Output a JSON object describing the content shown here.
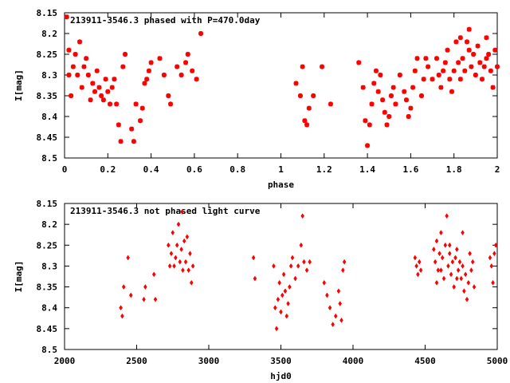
{
  "chart_data": [
    {
      "type": "scatter",
      "title": "213911-3546.3 phased with P=470.0day",
      "xlabel": "phase",
      "ylabel": "I[mag]",
      "xlim": [
        0,
        2
      ],
      "ylim": [
        8.15,
        8.5
      ],
      "y_inverted": true,
      "x_ticks": [
        "0",
        "0.2",
        "0.4",
        "0.6",
        "0.8",
        "1",
        "1.2",
        "1.4",
        "1.6",
        "1.8",
        "2"
      ],
      "y_ticks": [
        "8.15",
        "8.2",
        "8.25",
        "8.3",
        "8.35",
        "8.4",
        "8.45",
        "8.5"
      ],
      "grid": false,
      "marker_color": "#ff0000",
      "marker": "star",
      "series": [
        {
          "points": [
            [
              0.01,
              8.16
            ],
            [
              0.02,
              8.24
            ],
            [
              0.02,
              8.3
            ],
            [
              0.03,
              8.35
            ],
            [
              0.04,
              8.28
            ],
            [
              0.05,
              8.25
            ],
            [
              0.06,
              8.3
            ],
            [
              0.07,
              8.22
            ],
            [
              0.08,
              8.33
            ],
            [
              0.09,
              8.28
            ],
            [
              0.1,
              8.26
            ],
            [
              0.11,
              8.3
            ],
            [
              0.12,
              8.36
            ],
            [
              0.13,
              8.32
            ],
            [
              0.14,
              8.34
            ],
            [
              0.15,
              8.29
            ],
            [
              0.16,
              8.33
            ],
            [
              0.17,
              8.35
            ],
            [
              0.18,
              8.36
            ],
            [
              0.19,
              8.31
            ],
            [
              0.2,
              8.34
            ],
            [
              0.21,
              8.37
            ],
            [
              0.22,
              8.33
            ],
            [
              0.23,
              8.31
            ],
            [
              0.24,
              8.37
            ],
            [
              0.25,
              8.42
            ],
            [
              0.26,
              8.46
            ],
            [
              0.27,
              8.28
            ],
            [
              0.28,
              8.25
            ],
            [
              0.31,
              8.43
            ],
            [
              0.32,
              8.46
            ],
            [
              0.33,
              8.37
            ],
            [
              0.35,
              8.41
            ],
            [
              0.36,
              8.38
            ],
            [
              0.37,
              8.32
            ],
            [
              0.38,
              8.31
            ],
            [
              0.39,
              8.29
            ],
            [
              0.4,
              8.27
            ],
            [
              0.44,
              8.26
            ],
            [
              0.46,
              8.3
            ],
            [
              0.48,
              8.35
            ],
            [
              0.49,
              8.37
            ],
            [
              0.52,
              8.28
            ],
            [
              0.54,
              8.3
            ],
            [
              0.56,
              8.27
            ],
            [
              0.57,
              8.25
            ],
            [
              0.59,
              8.29
            ],
            [
              0.61,
              8.31
            ],
            [
              0.63,
              8.2
            ],
            [
              1.07,
              8.32
            ],
            [
              1.09,
              8.35
            ],
            [
              1.1,
              8.28
            ],
            [
              1.11,
              8.41
            ],
            [
              1.12,
              8.42
            ],
            [
              1.13,
              8.38
            ],
            [
              1.15,
              8.35
            ],
            [
              1.19,
              8.28
            ],
            [
              1.23,
              8.37
            ],
            [
              1.36,
              8.27
            ],
            [
              1.38,
              8.33
            ],
            [
              1.39,
              8.41
            ],
            [
              1.4,
              8.47
            ],
            [
              1.41,
              8.42
            ],
            [
              1.42,
              8.37
            ],
            [
              1.43,
              8.32
            ],
            [
              1.44,
              8.29
            ],
            [
              1.45,
              8.34
            ],
            [
              1.46,
              8.3
            ],
            [
              1.47,
              8.36
            ],
            [
              1.48,
              8.39
            ],
            [
              1.49,
              8.42
            ],
            [
              1.5,
              8.4
            ],
            [
              1.51,
              8.35
            ],
            [
              1.52,
              8.33
            ],
            [
              1.53,
              8.37
            ],
            [
              1.55,
              8.3
            ],
            [
              1.57,
              8.34
            ],
            [
              1.58,
              8.36
            ],
            [
              1.59,
              8.4
            ],
            [
              1.6,
              8.38
            ],
            [
              1.61,
              8.33
            ],
            [
              1.62,
              8.29
            ],
            [
              1.63,
              8.26
            ],
            [
              1.65,
              8.35
            ],
            [
              1.66,
              8.31
            ],
            [
              1.67,
              8.26
            ],
            [
              1.68,
              8.28
            ],
            [
              1.7,
              8.31
            ],
            [
              1.72,
              8.26
            ],
            [
              1.73,
              8.3
            ],
            [
              1.74,
              8.33
            ],
            [
              1.75,
              8.29
            ],
            [
              1.76,
              8.27
            ],
            [
              1.77,
              8.24
            ],
            [
              1.78,
              8.31
            ],
            [
              1.79,
              8.34
            ],
            [
              1.8,
              8.29
            ],
            [
              1.81,
              8.22
            ],
            [
              1.82,
              8.27
            ],
            [
              1.83,
              8.31
            ],
            [
              1.84,
              8.26
            ],
            [
              1.85,
              8.29
            ],
            [
              1.86,
              8.22
            ],
            [
              1.87,
              8.24
            ],
            [
              1.88,
              8.28
            ],
            [
              1.89,
              8.25
            ],
            [
              1.9,
              8.3
            ],
            [
              1.91,
              8.23
            ],
            [
              1.92,
              8.27
            ],
            [
              1.93,
              8.31
            ],
            [
              1.94,
              8.28
            ],
            [
              1.95,
              8.21
            ],
            [
              1.96,
              8.25
            ],
            [
              1.97,
              8.29
            ],
            [
              1.98,
              8.33
            ],
            [
              1.99,
              8.24
            ],
            [
              2.0,
              8.28
            ],
            [
              1.87,
              8.19
            ],
            [
              1.83,
              8.21
            ],
            [
              1.95,
              8.26
            ]
          ]
        }
      ]
    },
    {
      "type": "scatter",
      "title": "213911-3546.3 not phased light curve",
      "xlabel": "hjd0",
      "ylabel": "I[mag]",
      "xlim": [
        2000,
        5000
      ],
      "ylim": [
        8.15,
        8.5
      ],
      "y_inverted": true,
      "x_ticks": [
        "2000",
        "2500",
        "3000",
        "3500",
        "4000",
        "4500",
        "5000"
      ],
      "y_ticks": [
        "8.15",
        "8.2",
        "8.25",
        "8.3",
        "8.35",
        "8.4",
        "8.45",
        "8.5"
      ],
      "grid": false,
      "marker_color": "#ff0000",
      "marker": "diamond",
      "series": [
        {
          "points": [
            [
              2390,
              8.4
            ],
            [
              2400,
              8.42
            ],
            [
              2410,
              8.35
            ],
            [
              2440,
              8.28
            ],
            [
              2460,
              8.37
            ],
            [
              2550,
              8.38
            ],
            [
              2560,
              8.35
            ],
            [
              2620,
              8.32
            ],
            [
              2630,
              8.38
            ],
            [
              2720,
              8.25
            ],
            [
              2730,
              8.3
            ],
            [
              2740,
              8.27
            ],
            [
              2750,
              8.22
            ],
            [
              2760,
              8.3
            ],
            [
              2770,
              8.28
            ],
            [
              2780,
              8.25
            ],
            [
              2790,
              8.2
            ],
            [
              2800,
              8.29
            ],
            [
              2810,
              8.26
            ],
            [
              2815,
              8.17
            ],
            [
              2820,
              8.31
            ],
            [
              2830,
              8.24
            ],
            [
              2840,
              8.29
            ],
            [
              2850,
              8.23
            ],
            [
              2860,
              8.31
            ],
            [
              2870,
              8.27
            ],
            [
              2880,
              8.34
            ],
            [
              2890,
              8.3
            ],
            [
              3310,
              8.28
            ],
            [
              3320,
              8.33
            ],
            [
              3450,
              8.3
            ],
            [
              3460,
              8.4
            ],
            [
              3470,
              8.45
            ],
            [
              3480,
              8.38
            ],
            [
              3490,
              8.34
            ],
            [
              3500,
              8.41
            ],
            [
              3510,
              8.37
            ],
            [
              3520,
              8.32
            ],
            [
              3530,
              8.36
            ],
            [
              3540,
              8.42
            ],
            [
              3550,
              8.39
            ],
            [
              3560,
              8.35
            ],
            [
              3570,
              8.3
            ],
            [
              3580,
              8.28
            ],
            [
              3600,
              8.33
            ],
            [
              3620,
              8.3
            ],
            [
              3640,
              8.25
            ],
            [
              3650,
              8.18
            ],
            [
              3660,
              8.29
            ],
            [
              3680,
              8.31
            ],
            [
              3700,
              8.29
            ],
            [
              3800,
              8.34
            ],
            [
              3820,
              8.37
            ],
            [
              3840,
              8.4
            ],
            [
              3860,
              8.44
            ],
            [
              3880,
              8.42
            ],
            [
              3900,
              8.36
            ],
            [
              3910,
              8.39
            ],
            [
              3920,
              8.43
            ],
            [
              3930,
              8.31
            ],
            [
              3940,
              8.29
            ],
            [
              4430,
              8.28
            ],
            [
              4440,
              8.3
            ],
            [
              4450,
              8.32
            ],
            [
              4460,
              8.29
            ],
            [
              4470,
              8.31
            ],
            [
              4560,
              8.26
            ],
            [
              4570,
              8.29
            ],
            [
              4580,
              8.24
            ],
            [
              4590,
              8.31
            ],
            [
              4600,
              8.27
            ],
            [
              4610,
              8.22
            ],
            [
              4620,
              8.28
            ],
            [
              4630,
              8.33
            ],
            [
              4640,
              8.25
            ],
            [
              4650,
              8.18
            ],
            [
              4660,
              8.3
            ],
            [
              4670,
              8.27
            ],
            [
              4680,
              8.32
            ],
            [
              4690,
              8.29
            ],
            [
              4700,
              8.35
            ],
            [
              4710,
              8.28
            ],
            [
              4720,
              8.26
            ],
            [
              4730,
              8.31
            ],
            [
              4740,
              8.29
            ],
            [
              4750,
              8.33
            ],
            [
              4760,
              8.3
            ],
            [
              4770,
              8.36
            ],
            [
              4780,
              8.32
            ],
            [
              4790,
              8.38
            ],
            [
              4800,
              8.34
            ],
            [
              4810,
              8.27
            ],
            [
              4820,
              8.31
            ],
            [
              4830,
              8.29
            ],
            [
              4840,
              8.35
            ],
            [
              4950,
              8.28
            ],
            [
              4960,
              8.3
            ],
            [
              4970,
              8.34
            ],
            [
              4980,
              8.27
            ],
            [
              4990,
              8.25
            ],
            [
              4670,
              8.25
            ],
            [
              4720,
              8.33
            ],
            [
              4760,
              8.22
            ],
            [
              4610,
              8.31
            ],
            [
              4580,
              8.34
            ]
          ]
        }
      ]
    }
  ]
}
